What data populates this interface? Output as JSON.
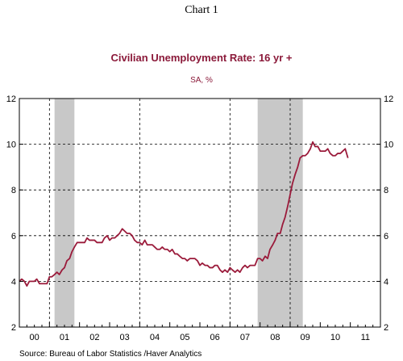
{
  "page_caption": "Chart 1",
  "source_text": "Source:  Bureau of Labor Statistics /Haver Analytics",
  "colors": {
    "series": "#9b1b3b",
    "title": "#8b1a3a",
    "recession": "#c8c8c8",
    "grid": "#000000",
    "axis": "#000000"
  },
  "chart_data": {
    "type": "line",
    "title": "Civilian Unemployment Rate: 16 yr +",
    "subtitle": "SA, %",
    "xlabel": "",
    "ylabel": "",
    "ylim": [
      2,
      12
    ],
    "y_ticks": [
      2,
      4,
      6,
      8,
      10,
      12
    ],
    "xlim": [
      2000.0,
      2012.0
    ],
    "x_tick_labels": [
      "00",
      "01",
      "02",
      "03",
      "04",
      "05",
      "06",
      "07",
      "08",
      "09",
      "10",
      "11"
    ],
    "x_tick_positions": [
      2000,
      2001,
      2002,
      2003,
      2004,
      2005,
      2006,
      2007,
      2008,
      2009,
      2010,
      2011
    ],
    "grid": "dashed vertical at years 2001, 2004, 2007, 2009; dashed horizontal at each y tick",
    "recessions": [
      {
        "start": 2001.17,
        "end": 2001.83
      },
      {
        "start": 2007.92,
        "end": 2009.42
      }
    ],
    "series": [
      {
        "points": [
          [
            2000.0,
            4.0
          ],
          [
            2000.08,
            4.1
          ],
          [
            2000.17,
            4.0
          ],
          [
            2000.25,
            3.8
          ],
          [
            2000.33,
            4.0
          ],
          [
            2000.42,
            4.0
          ],
          [
            2000.5,
            4.0
          ],
          [
            2000.58,
            4.1
          ],
          [
            2000.67,
            3.9
          ],
          [
            2000.75,
            3.9
          ],
          [
            2000.83,
            3.9
          ],
          [
            2000.92,
            3.9
          ],
          [
            2001.0,
            4.2
          ],
          [
            2001.08,
            4.2
          ],
          [
            2001.17,
            4.3
          ],
          [
            2001.25,
            4.4
          ],
          [
            2001.33,
            4.3
          ],
          [
            2001.42,
            4.5
          ],
          [
            2001.5,
            4.6
          ],
          [
            2001.58,
            4.9
          ],
          [
            2001.67,
            5.0
          ],
          [
            2001.75,
            5.3
          ],
          [
            2001.83,
            5.5
          ],
          [
            2001.92,
            5.7
          ],
          [
            2002.0,
            5.7
          ],
          [
            2002.08,
            5.7
          ],
          [
            2002.17,
            5.7
          ],
          [
            2002.25,
            5.9
          ],
          [
            2002.33,
            5.8
          ],
          [
            2002.42,
            5.8
          ],
          [
            2002.5,
            5.8
          ],
          [
            2002.58,
            5.7
          ],
          [
            2002.67,
            5.7
          ],
          [
            2002.75,
            5.7
          ],
          [
            2002.83,
            5.9
          ],
          [
            2002.92,
            6.0
          ],
          [
            2003.0,
            5.8
          ],
          [
            2003.08,
            5.9
          ],
          [
            2003.17,
            5.9
          ],
          [
            2003.25,
            6.0
          ],
          [
            2003.33,
            6.1
          ],
          [
            2003.42,
            6.3
          ],
          [
            2003.5,
            6.2
          ],
          [
            2003.58,
            6.1
          ],
          [
            2003.67,
            6.1
          ],
          [
            2003.75,
            6.0
          ],
          [
            2003.83,
            5.8
          ],
          [
            2003.92,
            5.7
          ],
          [
            2004.0,
            5.7
          ],
          [
            2004.08,
            5.6
          ],
          [
            2004.17,
            5.8
          ],
          [
            2004.25,
            5.6
          ],
          [
            2004.33,
            5.6
          ],
          [
            2004.42,
            5.6
          ],
          [
            2004.5,
            5.5
          ],
          [
            2004.58,
            5.4
          ],
          [
            2004.67,
            5.4
          ],
          [
            2004.75,
            5.5
          ],
          [
            2004.83,
            5.4
          ],
          [
            2004.92,
            5.4
          ],
          [
            2005.0,
            5.3
          ],
          [
            2005.08,
            5.4
          ],
          [
            2005.17,
            5.2
          ],
          [
            2005.25,
            5.2
          ],
          [
            2005.33,
            5.1
          ],
          [
            2005.42,
            5.0
          ],
          [
            2005.5,
            5.0
          ],
          [
            2005.58,
            4.9
          ],
          [
            2005.67,
            5.0
          ],
          [
            2005.75,
            5.0
          ],
          [
            2005.83,
            5.0
          ],
          [
            2005.92,
            4.9
          ],
          [
            2006.0,
            4.7
          ],
          [
            2006.08,
            4.8
          ],
          [
            2006.17,
            4.7
          ],
          [
            2006.25,
            4.7
          ],
          [
            2006.33,
            4.6
          ],
          [
            2006.42,
            4.6
          ],
          [
            2006.5,
            4.7
          ],
          [
            2006.58,
            4.7
          ],
          [
            2006.67,
            4.5
          ],
          [
            2006.75,
            4.4
          ],
          [
            2006.83,
            4.5
          ],
          [
            2006.92,
            4.4
          ],
          [
            2007.0,
            4.6
          ],
          [
            2007.08,
            4.5
          ],
          [
            2007.17,
            4.4
          ],
          [
            2007.25,
            4.5
          ],
          [
            2007.33,
            4.4
          ],
          [
            2007.42,
            4.6
          ],
          [
            2007.5,
            4.7
          ],
          [
            2007.58,
            4.6
          ],
          [
            2007.67,
            4.7
          ],
          [
            2007.75,
            4.7
          ],
          [
            2007.83,
            4.7
          ],
          [
            2007.92,
            5.0
          ],
          [
            2008.0,
            5.0
          ],
          [
            2008.08,
            4.9
          ],
          [
            2008.17,
            5.1
          ],
          [
            2008.25,
            5.0
          ],
          [
            2008.33,
            5.4
          ],
          [
            2008.42,
            5.6
          ],
          [
            2008.5,
            5.8
          ],
          [
            2008.58,
            6.1
          ],
          [
            2008.67,
            6.1
          ],
          [
            2008.75,
            6.5
          ],
          [
            2008.83,
            6.8
          ],
          [
            2008.92,
            7.3
          ],
          [
            2009.0,
            7.8
          ],
          [
            2009.08,
            8.3
          ],
          [
            2009.17,
            8.7
          ],
          [
            2009.25,
            9.0
          ],
          [
            2009.33,
            9.4
          ],
          [
            2009.42,
            9.5
          ],
          [
            2009.5,
            9.5
          ],
          [
            2009.58,
            9.6
          ],
          [
            2009.67,
            9.8
          ],
          [
            2009.75,
            10.1
          ],
          [
            2009.83,
            9.9
          ],
          [
            2009.92,
            9.9
          ],
          [
            2010.0,
            9.7
          ],
          [
            2010.08,
            9.7
          ],
          [
            2010.17,
            9.7
          ],
          [
            2010.25,
            9.8
          ],
          [
            2010.33,
            9.6
          ],
          [
            2010.42,
            9.5
          ],
          [
            2010.5,
            9.5
          ],
          [
            2010.58,
            9.6
          ],
          [
            2010.67,
            9.6
          ],
          [
            2010.75,
            9.7
          ],
          [
            2010.83,
            9.8
          ],
          [
            2010.92,
            9.4
          ]
        ]
      }
    ]
  }
}
